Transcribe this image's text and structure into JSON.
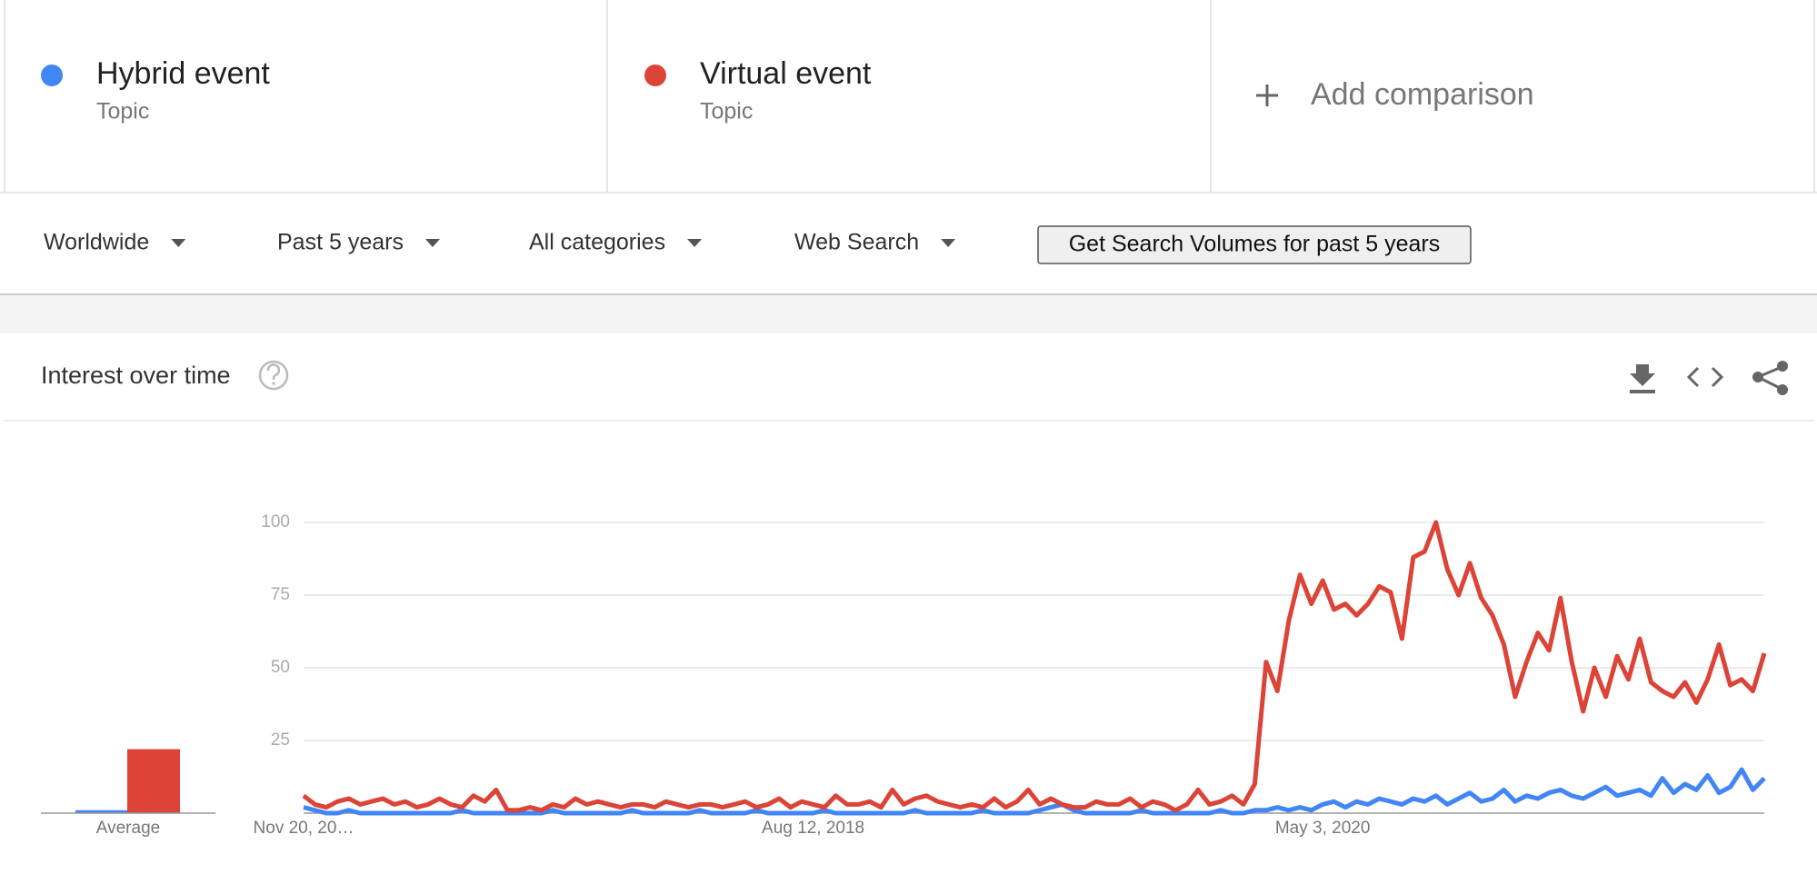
{
  "add_comparison": "Add comparison",
  "filters": [
    "Worldwide",
    "Past 5 years",
    "All categories",
    "Web Search"
  ],
  "button": "Get Search Volumes for past 5 years",
  "panel_title": "Interest over time",
  "chart_data": {
    "type": "line",
    "average_label": "Average",
    "categories": [
      "Nov 20, 20…",
      null,
      null,
      null,
      null,
      null,
      null,
      null,
      null,
      null,
      null,
      null,
      null,
      null,
      null,
      null,
      null,
      null,
      null,
      null,
      null,
      null,
      null,
      null,
      null,
      null,
      null,
      null,
      null,
      null,
      null,
      null,
      null,
      null,
      null,
      null,
      null,
      null,
      null,
      null,
      null,
      null,
      null,
      null,
      null,
      "Aug 12, 2018",
      null,
      null,
      null,
      null,
      null,
      null,
      null,
      null,
      null,
      null,
      null,
      null,
      null,
      null,
      null,
      null,
      null,
      null,
      null,
      null,
      null,
      null,
      null,
      null,
      null,
      null,
      null,
      null,
      null,
      null,
      null,
      null,
      null,
      null,
      null,
      null,
      null,
      null,
      null,
      null,
      null,
      null,
      null,
      null,
      "May 3, 2020",
      null,
      null,
      null,
      null,
      null,
      null,
      null,
      null,
      null,
      null,
      null,
      null,
      null,
      null,
      null,
      null,
      null,
      null,
      null,
      null,
      null,
      null,
      null,
      null,
      null,
      null,
      null,
      null,
      null,
      null,
      null,
      null,
      null,
      null,
      null,
      null,
      null,
      null,
      null
    ],
    "series": [
      {
        "name": "Hybrid event",
        "subtitle": "Topic",
        "color": "#4285f4",
        "average": 1,
        "values": [
          2,
          1,
          0,
          0,
          1,
          0,
          0,
          0,
          0,
          0,
          0,
          0,
          0,
          0,
          1,
          0,
          0,
          0,
          0,
          0,
          0,
          0,
          1,
          0,
          0,
          0,
          0,
          0,
          0,
          1,
          0,
          0,
          0,
          0,
          0,
          1,
          0,
          0,
          0,
          0,
          1,
          0,
          0,
          0,
          0,
          0,
          1,
          0,
          0,
          0,
          0,
          0,
          0,
          0,
          1,
          0,
          0,
          0,
          0,
          0,
          1,
          0,
          0,
          0,
          0,
          1,
          2,
          3,
          1,
          0,
          0,
          0,
          0,
          0,
          1,
          0,
          0,
          0,
          0,
          0,
          0,
          1,
          0,
          0,
          1,
          1,
          2,
          1,
          2,
          1,
          3,
          4,
          2,
          4,
          3,
          5,
          4,
          3,
          5,
          4,
          6,
          3,
          5,
          7,
          4,
          5,
          8,
          4,
          6,
          5,
          7,
          8,
          6,
          5,
          7,
          9,
          6,
          7,
          8,
          6,
          12,
          7,
          10,
          8,
          13,
          7,
          9,
          15,
          8,
          12
        ]
      },
      {
        "name": "Virtual event",
        "subtitle": "Topic",
        "color": "#db4437",
        "average": 22,
        "values": [
          6,
          3,
          2,
          4,
          5,
          3,
          4,
          5,
          3,
          4,
          2,
          3,
          5,
          3,
          2,
          6,
          4,
          8,
          1,
          1,
          2,
          1,
          3,
          2,
          5,
          3,
          4,
          3,
          2,
          3,
          3,
          2,
          4,
          3,
          2,
          3,
          3,
          2,
          3,
          4,
          2,
          3,
          5,
          2,
          4,
          3,
          2,
          6,
          3,
          3,
          4,
          2,
          8,
          3,
          5,
          6,
          4,
          3,
          2,
          3,
          2,
          5,
          2,
          4,
          8,
          3,
          5,
          3,
          2,
          2,
          4,
          3,
          3,
          5,
          2,
          4,
          3,
          1,
          3,
          8,
          3,
          4,
          6,
          3,
          10,
          52,
          42,
          66,
          82,
          72,
          80,
          70,
          72,
          68,
          72,
          78,
          76,
          60,
          88,
          90,
          100,
          84,
          75,
          86,
          74,
          68,
          58,
          40,
          52,
          62,
          56,
          74,
          52,
          35,
          50,
          40,
          54,
          46,
          60,
          45,
          42,
          40,
          45,
          38,
          46,
          58,
          44,
          46,
          42,
          55
        ]
      }
    ],
    "ylim": [
      0,
      100
    ],
    "yticks": [
      25,
      50,
      75,
      100
    ],
    "grid": true
  }
}
